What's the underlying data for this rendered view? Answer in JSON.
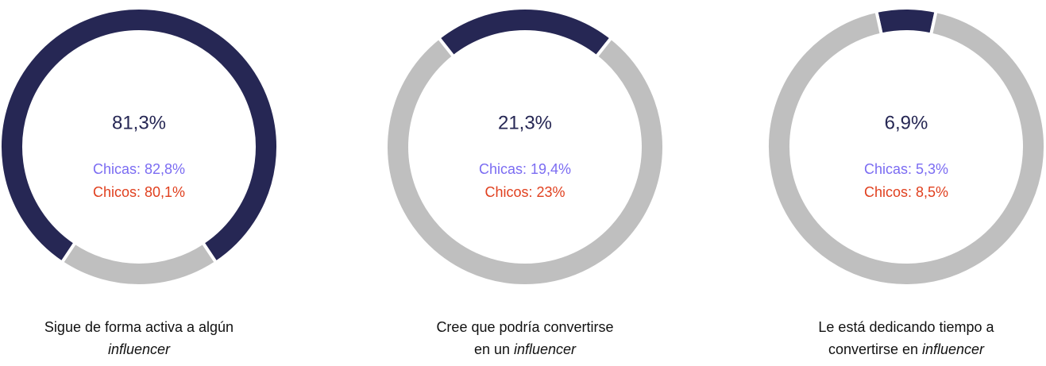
{
  "chart_data": [
    {
      "type": "pie",
      "hole": true,
      "categories": [
        null,
        null
      ],
      "values": [
        81.3,
        18.7
      ],
      "value_labels": [
        "81,3%",
        null
      ],
      "colors": [
        "#262754",
        "#bfbfbf"
      ],
      "annotations": [
        {
          "text": "Chicas: 82,8%",
          "color": "#7b6cf2"
        },
        {
          "text": "Chicos: 80,1%",
          "color": "#e0401f"
        }
      ],
      "caption": [
        [
          {
            "text": "Sigue de forma activa a algún",
            "italic": false
          }
        ],
        [
          {
            "text": "influencer",
            "italic": true
          }
        ]
      ]
    },
    {
      "type": "pie",
      "hole": true,
      "categories": [
        null,
        null
      ],
      "values": [
        21.3,
        78.7
      ],
      "value_labels": [
        "21,3%",
        null
      ],
      "colors": [
        "#262754",
        "#bfbfbf"
      ],
      "annotations": [
        {
          "text": "Chicas: 19,4%",
          "color": "#7b6cf2"
        },
        {
          "text": "Chicos: 23%",
          "color": "#e0401f"
        }
      ],
      "caption": [
        [
          {
            "text": "Cree que podría convertirse",
            "italic": false
          }
        ],
        [
          {
            "text": "en un ",
            "italic": false
          },
          {
            "text": "influencer",
            "italic": true
          }
        ]
      ]
    },
    {
      "type": "pie",
      "hole": true,
      "categories": [
        null,
        null
      ],
      "values": [
        6.9,
        93.1
      ],
      "value_labels": [
        "6,9%",
        null
      ],
      "colors": [
        "#262754",
        "#bfbfbf"
      ],
      "annotations": [
        {
          "text": "Chicas: 5,3%",
          "color": "#7b6cf2"
        },
        {
          "text": "Chicos: 8,5%",
          "color": "#e0401f"
        }
      ],
      "caption": [
        [
          {
            "text": "Le está dedicando tiempo a",
            "italic": false
          }
        ],
        [
          {
            "text": "convertirse en ",
            "italic": false
          },
          {
            "text": "influencer",
            "italic": true
          }
        ]
      ]
    }
  ]
}
